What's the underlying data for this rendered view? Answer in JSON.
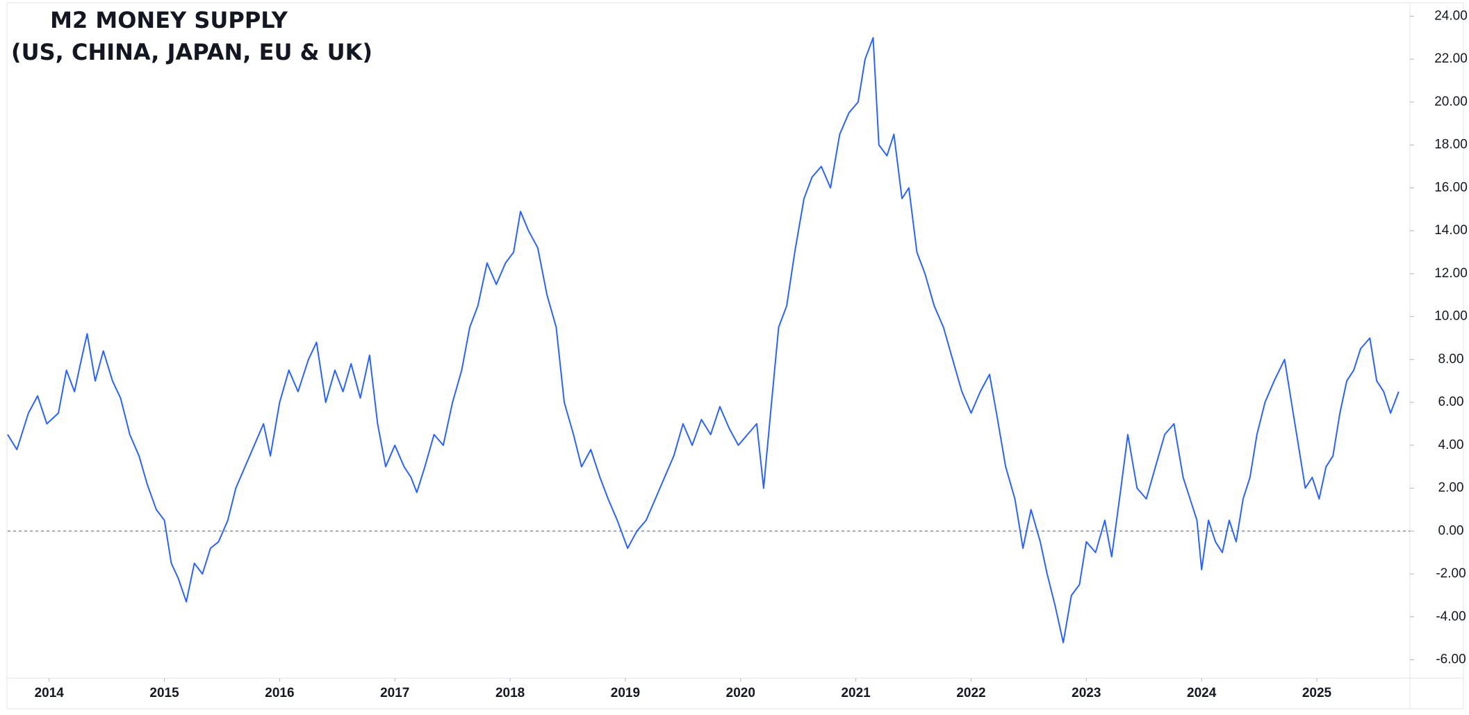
{
  "chart_data": {
    "type": "line",
    "title": "M2 MONEY SUPPLY",
    "subtitle": "(US, CHINA, JAPAN, EU & UK)",
    "x": [
      2013.64,
      2013.72,
      2013.82,
      2013.9,
      2013.98,
      2014.08,
      2014.15,
      2014.22,
      2014.28,
      2014.33,
      2014.4,
      2014.47,
      2014.55,
      2014.62,
      2014.7,
      2014.78,
      2014.85,
      2014.93,
      2015.0,
      2015.06,
      2015.12,
      2015.19,
      2015.26,
      2015.33,
      2015.4,
      2015.47,
      2015.55,
      2015.62,
      2015.7,
      2015.78,
      2015.86,
      2015.92,
      2016.0,
      2016.08,
      2016.16,
      2016.25,
      2016.32,
      2016.4,
      2016.48,
      2016.55,
      2016.62,
      2016.7,
      2016.78,
      2016.85,
      2016.92,
      2017.0,
      2017.08,
      2017.14,
      2017.19,
      2017.26,
      2017.34,
      2017.42,
      2017.5,
      2017.58,
      2017.65,
      2017.72,
      2017.8,
      2017.88,
      2017.96,
      2018.03,
      2018.09,
      2018.16,
      2018.24,
      2018.32,
      2018.4,
      2018.47,
      2018.55,
      2018.62,
      2018.7,
      2018.78,
      2018.85,
      2018.93,
      2019.02,
      2019.1,
      2019.18,
      2019.26,
      2019.34,
      2019.42,
      2019.5,
      2019.58,
      2019.66,
      2019.74,
      2019.82,
      2019.9,
      2019.98,
      2020.06,
      2020.14,
      2020.2,
      2020.26,
      2020.33,
      2020.4,
      2020.47,
      2020.55,
      2020.62,
      2020.7,
      2020.78,
      2020.86,
      2020.94,
      2021.02,
      2021.08,
      2021.15,
      2021.2,
      2021.27,
      2021.33,
      2021.4,
      2021.46,
      2021.53,
      2021.6,
      2021.68,
      2021.76,
      2021.84,
      2021.92,
      2022.0,
      2022.08,
      2022.16,
      2022.22,
      2022.3,
      2022.38,
      2022.45,
      2022.52,
      2022.6,
      2022.66,
      2022.73,
      2022.8,
      2022.87,
      2022.94,
      2023.0,
      2023.08,
      2023.16,
      2023.22,
      2023.3,
      2023.36,
      2023.44,
      2023.52,
      2023.6,
      2023.68,
      2023.76,
      2023.84,
      2023.9,
      2023.96,
      2024.0,
      2024.06,
      2024.12,
      2024.18,
      2024.24,
      2024.3,
      2024.36,
      2024.42,
      2024.48,
      2024.55,
      2024.63,
      2024.72,
      2024.78,
      2024.84,
      2024.9,
      2024.96,
      2025.02,
      2025.08,
      2025.14,
      2025.2,
      2025.26,
      2025.32,
      2025.38,
      2025.46,
      2025.52,
      2025.58,
      2025.64,
      2025.71
    ],
    "series": [
      {
        "color": "#2962ff",
        "values": [
          4.5,
          3.8,
          5.5,
          6.3,
          5.0,
          5.5,
          7.5,
          6.5,
          8.0,
          9.2,
          7.0,
          8.4,
          7.0,
          6.2,
          4.5,
          3.5,
          2.2,
          1.0,
          0.5,
          -1.5,
          -2.2,
          -3.3,
          -1.5,
          -2.0,
          -0.8,
          -0.5,
          0.5,
          2.0,
          3.0,
          4.0,
          5.0,
          3.5,
          6.0,
          7.5,
          6.5,
          8.0,
          8.8,
          6.0,
          7.5,
          6.5,
          7.8,
          6.2,
          8.2,
          5.0,
          3.0,
          4.0,
          3.0,
          2.5,
          1.8,
          3.0,
          4.5,
          4.0,
          6.0,
          7.5,
          9.5,
          10.5,
          12.5,
          11.5,
          12.5,
          13.0,
          14.9,
          14.0,
          13.2,
          11.0,
          9.5,
          6.0,
          4.5,
          3.0,
          3.8,
          2.5,
          1.5,
          0.5,
          -0.8,
          0.0,
          0.5,
          1.5,
          2.5,
          3.5,
          5.0,
          4.0,
          5.2,
          4.5,
          5.8,
          4.8,
          4.0,
          4.5,
          5.0,
          2.0,
          5.5,
          9.5,
          10.5,
          13.0,
          15.5,
          16.5,
          17.0,
          16.0,
          18.5,
          19.5,
          20.0,
          22.0,
          23.0,
          18.0,
          17.5,
          18.5,
          15.5,
          16.0,
          13.0,
          12.0,
          10.5,
          9.5,
          8.0,
          6.5,
          5.5,
          6.5,
          7.3,
          5.5,
          3.0,
          1.5,
          -0.8,
          1.0,
          -0.5,
          -2.0,
          -3.5,
          -5.2,
          -3.0,
          -2.5,
          -0.5,
          -1.0,
          0.5,
          -1.2,
          2.0,
          4.5,
          2.0,
          1.5,
          3.0,
          4.5,
          5.0,
          2.5,
          1.5,
          0.5,
          -1.8,
          0.5,
          -0.5,
          -1.0,
          0.5,
          -0.5,
          1.5,
          2.5,
          4.5,
          6.0,
          7.0,
          8.0,
          6.0,
          4.0,
          2.0,
          2.5,
          1.5,
          3.0,
          3.5,
          5.5,
          7.0,
          7.5,
          8.5,
          9.0,
          7.0,
          6.5,
          5.5,
          6.5
        ]
      }
    ],
    "xlim": [
      2013.64,
      2025.82
    ],
    "xticks": [
      2014,
      2015,
      2016,
      2017,
      2018,
      2019,
      2020,
      2021,
      2022,
      2023,
      2024,
      2025
    ],
    "ylim": [
      -6.6,
      24.5
    ],
    "yticks": [
      {
        "value": 24,
        "label": "24.00"
      },
      {
        "value": 22,
        "label": "22.00"
      },
      {
        "value": 20,
        "label": "20.00"
      },
      {
        "value": 18,
        "label": "18.00"
      },
      {
        "value": 16,
        "label": "16.00"
      },
      {
        "value": 14,
        "label": "14.00"
      },
      {
        "value": 12,
        "label": "12.00"
      },
      {
        "value": 10,
        "label": "10.00"
      },
      {
        "value": 8,
        "label": "8.00"
      },
      {
        "value": 6,
        "label": "6.00"
      },
      {
        "value": 4,
        "label": "4.00"
      },
      {
        "value": 2,
        "label": "2.00"
      },
      {
        "value": 0,
        "label": "0.00"
      },
      {
        "value": -2,
        "label": "-2.00"
      },
      {
        "value": -4,
        "label": "-4.00"
      },
      {
        "value": -6,
        "label": "-6.00"
      }
    ],
    "reference_line": 0,
    "grid": false
  }
}
